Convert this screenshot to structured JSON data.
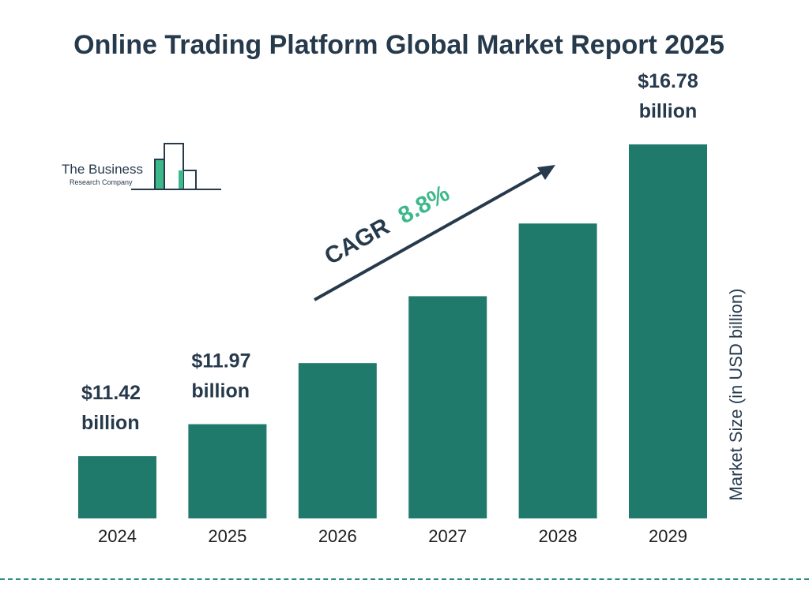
{
  "title": "Online Trading Platform Global Market Report 2025",
  "logo": {
    "line1": "The Business",
    "line2": "Research Company"
  },
  "chart_data": {
    "type": "bar",
    "categories": [
      "2024",
      "2025",
      "2026",
      "2027",
      "2028",
      "2029"
    ],
    "values": [
      11.42,
      11.97,
      13.02,
      14.17,
      15.42,
      16.78
    ],
    "data_labels": [
      "$11.42 billion",
      "$11.97 billion",
      "",
      "",
      "",
      "$16.78 billion"
    ],
    "ylabel": "Market Size (in USD billion)",
    "annotation": {
      "prefix": "CAGR",
      "value": "8.8%"
    },
    "grid": false,
    "bar_color": "#207a6b",
    "accent_color": "#3cb88a"
  }
}
